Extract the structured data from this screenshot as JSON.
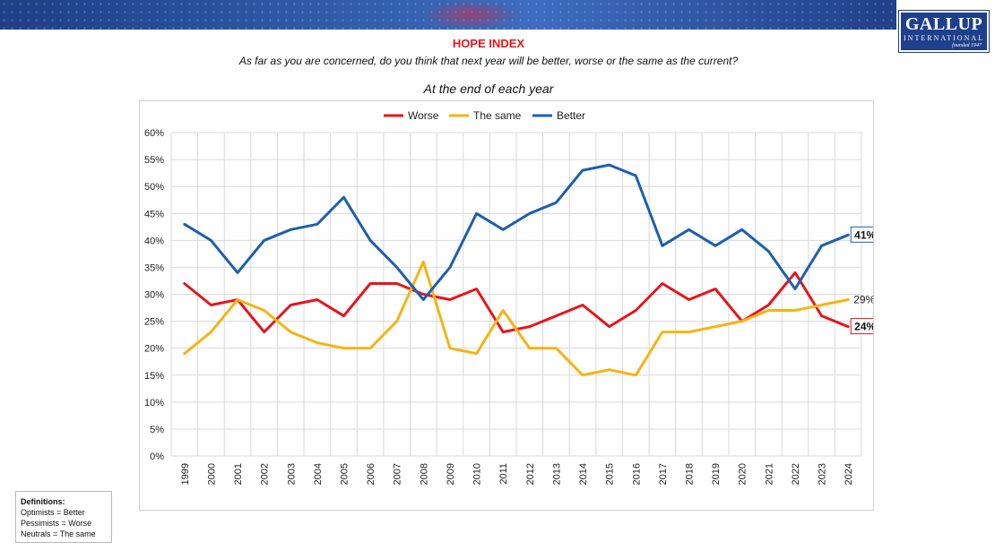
{
  "logo": {
    "name": "GALLUP",
    "sub": "INTERNATIONAL",
    "founded": "founded 1947"
  },
  "header": {
    "title": "HOPE INDEX",
    "question": "As far as you are concerned, do you think that next year will be better, worse or the same as the current?"
  },
  "definitions": {
    "title": "Definitions:",
    "lines": [
      "Optimists = Better",
      "Pessimists = Worse",
      "Neutrals = The same"
    ]
  },
  "chart_data": {
    "type": "line",
    "title": "At the end of each year",
    "x": [
      "1999",
      "2000",
      "2001",
      "2002",
      "2003",
      "2004",
      "2005",
      "2006",
      "2007",
      "2008",
      "2009",
      "2010",
      "2011",
      "2012",
      "2013",
      "2014",
      "2015",
      "2016",
      "2017",
      "2018",
      "2019",
      "2020",
      "2021",
      "2022",
      "2023",
      "2024"
    ],
    "y_ticks": [
      "0%",
      "5%",
      "10%",
      "15%",
      "20%",
      "25%",
      "30%",
      "35%",
      "40%",
      "45%",
      "50%",
      "55%",
      "60%"
    ],
    "ylim": [
      0,
      60
    ],
    "grid": true,
    "legend": "top",
    "series": [
      {
        "name": "Worse",
        "color": "#e8141b",
        "values": [
          32,
          28,
          29,
          23,
          28,
          29,
          26,
          32,
          32,
          30,
          29,
          31,
          23,
          24,
          26,
          28,
          24,
          27,
          32,
          29,
          31,
          25,
          28,
          34,
          26,
          24
        ],
        "end_label": "24%",
        "end_label_style": "boxed"
      },
      {
        "name": "The same",
        "color": "#f6b412",
        "values": [
          19,
          23,
          29,
          27,
          23,
          21,
          20,
          20,
          25,
          36,
          20,
          19,
          27,
          20,
          20,
          15,
          16,
          15,
          23,
          23,
          24,
          25,
          27,
          27,
          28,
          29
        ],
        "end_label": "29%",
        "end_label_style": "plain"
      },
      {
        "name": "Better",
        "color": "#1d5fb0",
        "values": [
          43,
          40,
          34,
          40,
          42,
          43,
          48,
          40,
          35,
          29,
          35,
          45,
          42,
          45,
          47,
          53,
          54,
          52,
          39,
          42,
          39,
          42,
          38,
          31,
          39,
          41
        ],
        "end_label": "41%",
        "end_label_style": "boxed"
      }
    ]
  }
}
